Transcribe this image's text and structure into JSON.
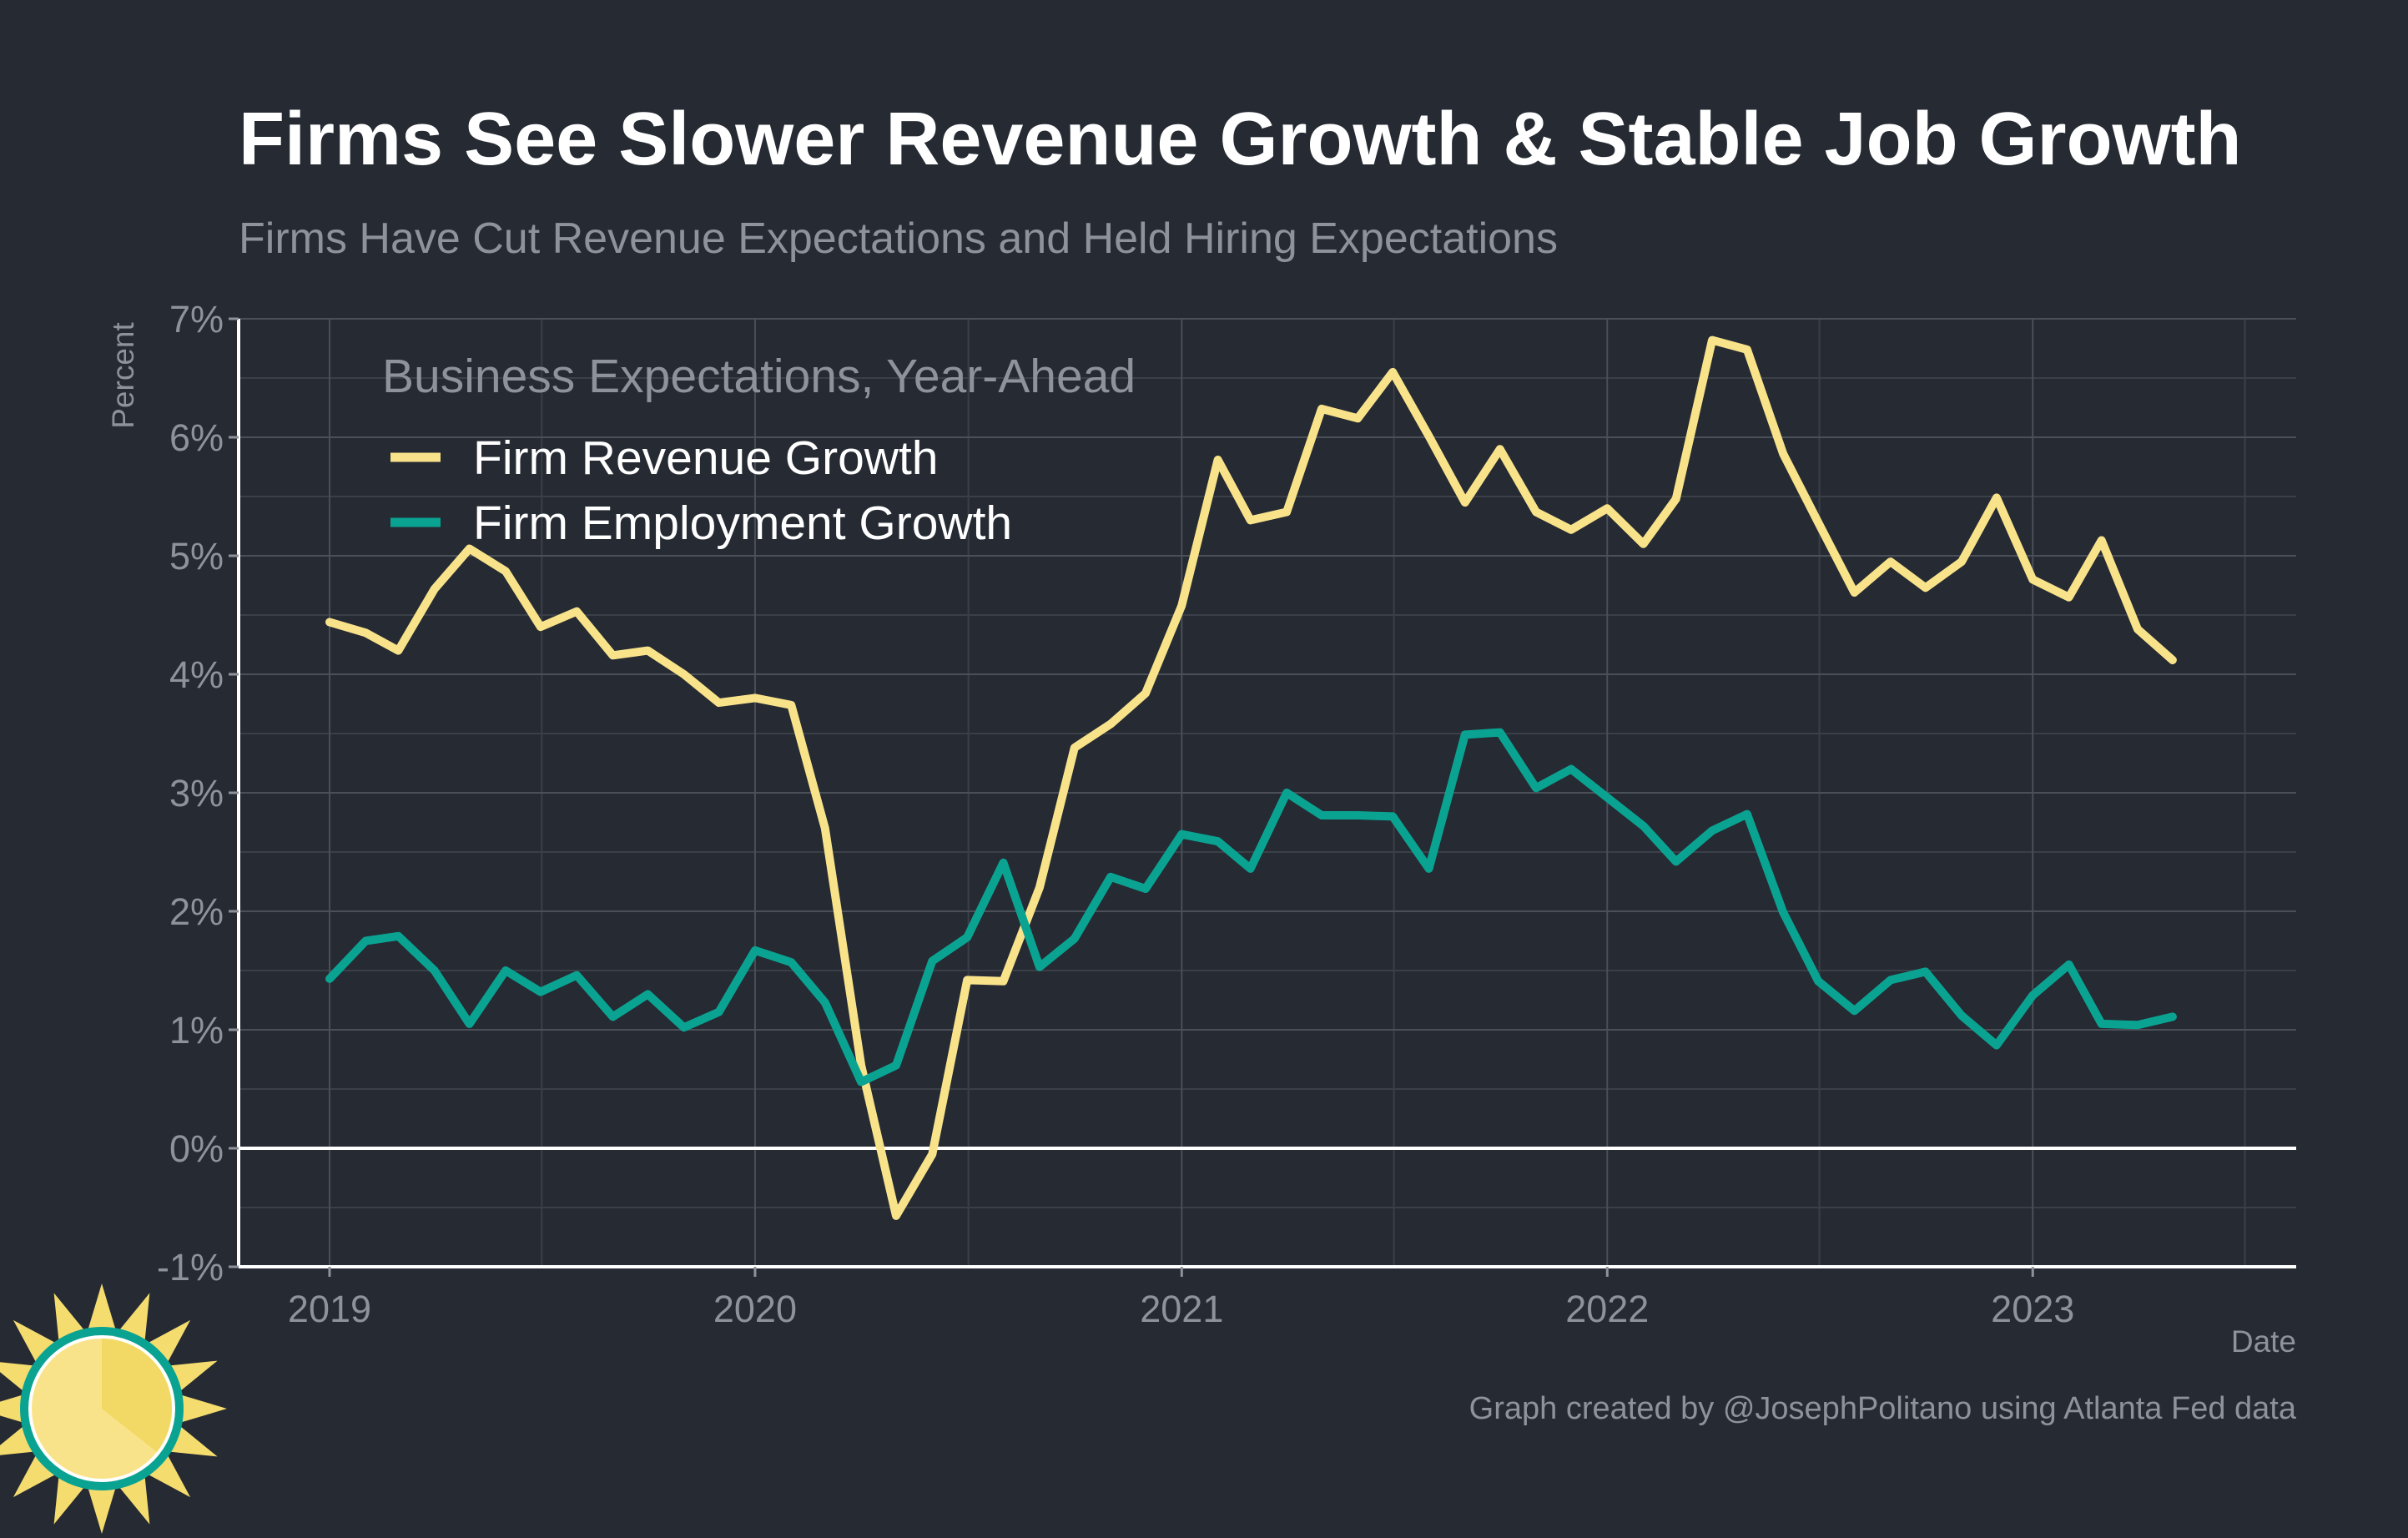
{
  "chart_data": {
    "type": "line",
    "title": "Firms See Slower Revenue Growth & Stable Job Growth",
    "subtitle": "Firms Have Cut Revenue Expectations and Held Hiring Expectations",
    "xlabel": "Date",
    "ylabel": "Percent",
    "caption": "Graph created by @JosephPolitano using Atlanta Fed data",
    "legend_title": "Business Expectations, Year-Ahead",
    "legend_position": "top-left",
    "grid": true,
    "xlim": [
      "2018-10-15",
      "2023-08-15"
    ],
    "ylim": [
      -1,
      7
    ],
    "yticks": [
      {
        "value": -1,
        "label": "-1%"
      },
      {
        "value": 0,
        "label": "0%"
      },
      {
        "value": 1,
        "label": "1%"
      },
      {
        "value": 2,
        "label": "2%"
      },
      {
        "value": 3,
        "label": "3%"
      },
      {
        "value": 4,
        "label": "4%"
      },
      {
        "value": 5,
        "label": "5%"
      },
      {
        "value": 6,
        "label": "6%"
      },
      {
        "value": 7,
        "label": "7%"
      }
    ],
    "xticks": [
      {
        "date": "2019-01-01",
        "label": "2019"
      },
      {
        "date": "2020-01-01",
        "label": "2020"
      },
      {
        "date": "2021-01-01",
        "label": "2021"
      },
      {
        "date": "2022-01-01",
        "label": "2022"
      },
      {
        "date": "2023-01-01",
        "label": "2023"
      }
    ],
    "x": [
      "2019-01",
      "2019-02",
      "2019-03",
      "2019-04",
      "2019-05",
      "2019-06",
      "2019-07",
      "2019-08",
      "2019-09",
      "2019-10",
      "2019-11",
      "2019-12",
      "2020-01",
      "2020-02",
      "2020-03",
      "2020-04",
      "2020-05",
      "2020-06",
      "2020-07",
      "2020-08",
      "2020-09",
      "2020-10",
      "2020-11",
      "2020-12",
      "2021-01",
      "2021-02",
      "2021-03",
      "2021-04",
      "2021-05",
      "2021-06",
      "2021-07",
      "2021-08",
      "2021-09",
      "2021-10",
      "2021-11",
      "2021-12",
      "2022-01",
      "2022-02",
      "2022-03",
      "2022-04",
      "2022-05",
      "2022-06",
      "2022-07",
      "2022-08",
      "2022-09",
      "2022-10",
      "2022-11",
      "2022-12",
      "2023-01",
      "2023-02",
      "2023-03",
      "2023-04",
      "2023-05"
    ],
    "series": [
      {
        "name": "Firm Revenue Growth",
        "color": "#f9e38a",
        "values": [
          4.44,
          4.35,
          4.2,
          4.72,
          5.06,
          4.87,
          4.4,
          4.53,
          4.16,
          4.2,
          4.0,
          3.76,
          3.8,
          3.74,
          2.7,
          0.7,
          -0.57,
          -0.05,
          1.42,
          1.41,
          2.2,
          3.38,
          3.58,
          3.84,
          4.58,
          5.81,
          5.3,
          5.37,
          6.24,
          6.16,
          6.55,
          6.01,
          5.45,
          5.9,
          5.37,
          5.22,
          5.4,
          5.1,
          5.48,
          6.82,
          6.74,
          5.86,
          5.28,
          4.69,
          4.95,
          4.73,
          4.95,
          5.49,
          4.8,
          4.65,
          5.13,
          4.38,
          4.12
        ]
      },
      {
        "name": "Firm Employment Growth",
        "color": "#0aa392",
        "values": [
          1.43,
          1.75,
          1.79,
          1.5,
          1.05,
          1.5,
          1.32,
          1.46,
          1.11,
          1.3,
          1.02,
          1.15,
          1.67,
          1.57,
          1.23,
          0.56,
          0.7,
          1.58,
          1.78,
          2.41,
          1.53,
          1.77,
          2.29,
          2.19,
          2.65,
          2.59,
          2.36,
          3.0,
          2.81,
          2.81,
          2.8,
          2.36,
          3.49,
          3.51,
          3.04,
          3.2,
          2.96,
          2.72,
          2.42,
          2.68,
          2.82,
          1.99,
          1.41,
          1.16,
          1.42,
          1.49,
          1.12,
          0.87,
          1.29,
          1.55,
          1.05,
          1.04,
          1.11
        ]
      }
    ]
  },
  "logo": {
    "name": "sun-logo",
    "colors": {
      "ring": "#0aa392",
      "face": "#f9e38a",
      "rays": "#f5dc6e"
    }
  }
}
